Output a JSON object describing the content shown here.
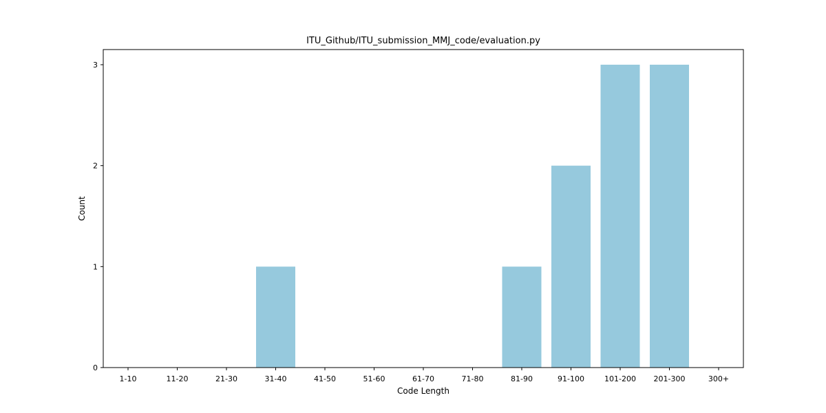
{
  "chart_data": {
    "type": "bar",
    "title": "ITU_Github/ITU_submission_MMJ_code/evaluation.py",
    "xlabel": "Code Length",
    "ylabel": "Count",
    "categories": [
      "1-10",
      "11-20",
      "21-30",
      "31-40",
      "41-50",
      "51-60",
      "61-70",
      "71-80",
      "81-90",
      "91-100",
      "101-200",
      "201-300",
      "300+"
    ],
    "values": [
      0,
      0,
      0,
      1,
      0,
      0,
      0,
      0,
      1,
      2,
      3,
      3,
      0
    ],
    "ylim": [
      0,
      3.15
    ],
    "yticks": [
      0,
      1,
      2,
      3
    ],
    "bar_color": "#96c9dd",
    "grid": false,
    "legend": "none"
  }
}
